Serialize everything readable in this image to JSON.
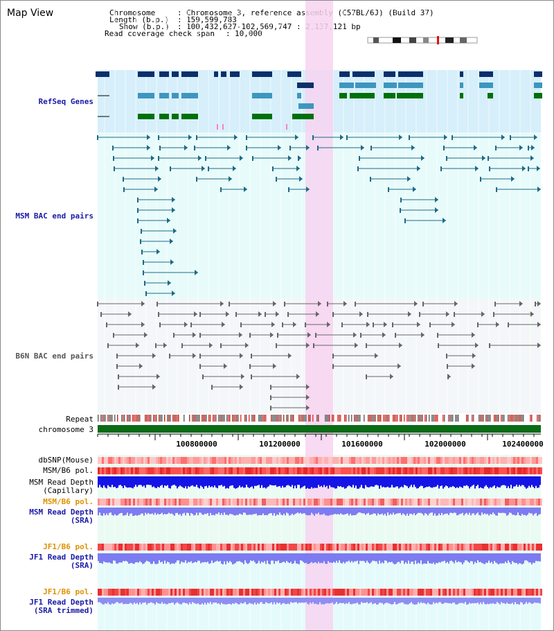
{
  "title": "Map View",
  "info": {
    "chromosome_key": "Chromosome",
    "chromosome_value": "Chromosome 3, reference assembly (C57BL/6J) (Build 37)",
    "length_key": "Length (b.p.)",
    "length_value": "159,599,783",
    "show_key": "Show (b.p.)",
    "show_value": "100,432,627-102,569,747 : 2,137,121 bp",
    "coverage_key": "Read coverage check span",
    "coverage_value": "10,000"
  },
  "tracks": {
    "refseq": "RefSeq Genes",
    "msm_bac": "MSM BAC end pairs",
    "b6n_bac": "B6N BAC end pairs",
    "repeat": "Repeat",
    "chromosome": "chromosome 3",
    "dbsnp": "dbSNP(Mouse)",
    "msm_b6_pol": "MSM/B6 pol.",
    "msm_depth_cap_1": "MSM Read Depth",
    "msm_depth_cap_2": "(Capillary)",
    "msm_b6_pol_2": "MSM/B6 pol.",
    "msm_depth_sra_1": "MSM Read Depth",
    "msm_depth_sra_2": "(SRA)",
    "jf1_b6_pol": "JF1/B6 pol.",
    "jf1_depth_sra_1": "JF1 Read Depth",
    "jf1_depth_sra_2": "(SRA)",
    "jf1_b6_pol_2": "JF1/B6 pol.",
    "jf1_depth_trim_1": "JF1 Read Depth",
    "jf1_depth_trim_2": "(SRA trimmed)"
  },
  "axis": {
    "ticks": [
      "100800000",
      "101200000",
      "101600000",
      "102000000",
      "102400000"
    ]
  },
  "colors": {
    "highlight": "#f7d3f1",
    "refseq_bg": "#d6effa",
    "gene_dark": "#0b2f6b",
    "gene_mid": "#3d96bf",
    "gene_green": "#00700a",
    "msm_line": "#1d6a85",
    "b6n_line": "#666666",
    "chrom_green": "#0a6b16",
    "depth_blue": "#1414e6",
    "depth_light": "#7c7cf0",
    "pol_red": "#f03838"
  }
}
